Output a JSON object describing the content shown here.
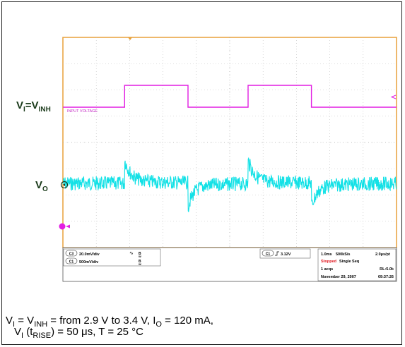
{
  "chart_data": {
    "type": "line",
    "title": "",
    "xlabel": "",
    "ylabel": "",
    "grid": true,
    "series": [
      {
        "name": "INPUT VOLTAGE",
        "color": "#e21ee2",
        "x": [
          0.0,
          1.85,
          1.85,
          3.75,
          3.75,
          5.55,
          5.55,
          7.45,
          7.45,
          10.0
        ],
        "values": [
          0,
          0,
          1,
          1,
          0,
          0,
          1,
          1,
          0,
          0
        ]
      },
      {
        "name": "",
        "color": "#13e1e6"
      }
    ],
    "trigger": {
      "label": "3.12V"
    }
  },
  "labels": {
    "vi": "V",
    "vi_sub": "I",
    "vi_eq": "=V",
    "vi_inh": "INH",
    "vo": "V",
    "vo_sub": "O"
  },
  "scope": {
    "trace_label": "INPUT VOLTAGE",
    "ch_a_scale": "20.0mV/div",
    "ch_b_scale": "500mV/div",
    "ch_a_badge": "C3",
    "ch_b_badge": "C1",
    "bw_a": "B",
    "bw_a_sub": "W",
    "bw_b": "B",
    "bw_b_sub": "W",
    "trig_badge": "C1",
    "trig_level": "3.12V",
    "timebase": "1.0ms",
    "sample_rate": "500kS/s",
    "resolution": "2.0μs/pt",
    "status": "Stopped",
    "mode": "Single Seq",
    "acqs": "1 acqs",
    "record_length": "RL:5.0k",
    "date": "November 29, 2007",
    "time": "09:37:26",
    "status_color": "#e0141c"
  },
  "caption": {
    "line1_a": "V",
    "line1_a_sub": "I",
    "line1_b": " = V",
    "line1_b_sub": "INH",
    "line1_c": " = from 2.9 V to 3.4 V, I",
    "line1_c_sub": "O",
    "line1_d": " = 120 mA,",
    "line2_a": "V",
    "line2_a_sub": "I",
    "line2_b": " (t",
    "line2_b_sub": "RISE",
    "line2_c": ") = 50 μs, T = 25 °C"
  }
}
